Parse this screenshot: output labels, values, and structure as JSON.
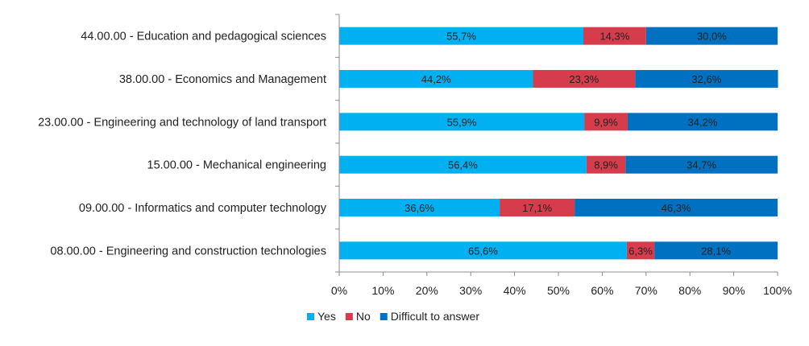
{
  "chart_data": {
    "type": "bar",
    "orientation": "horizontal",
    "stacked": true,
    "percent": true,
    "categories": [
      "44.00.00 - Education and pedagogical sciences",
      "38.00.00 - Economics and Management",
      "23.00.00 - Engineering and technology of land transport",
      "15.00.00 - Mechanical engineering",
      "09.00.00 - Informatics and computer technology",
      "08.00.00 - Engineering and construction technologies"
    ],
    "series": [
      {
        "name": "Yes",
        "color": "#00b0f0",
        "values": [
          55.7,
          44.2,
          55.9,
          56.4,
          36.6,
          65.6
        ],
        "labels": [
          "55,7%",
          "44,2%",
          "55,9%",
          "56,4%",
          "36,6%",
          "65,6%"
        ]
      },
      {
        "name": "No",
        "color": "#d63c4c",
        "values": [
          14.3,
          23.3,
          9.9,
          8.9,
          17.1,
          6.3
        ],
        "labels": [
          "14,3%",
          "23,3%",
          "9,9%",
          "8,9%",
          "17,1%",
          "6,3%"
        ]
      },
      {
        "name": "Difficult to answer",
        "color": "#0070c0",
        "values": [
          30.0,
          32.6,
          34.2,
          34.7,
          46.3,
          28.1
        ],
        "labels": [
          "30,0%",
          "32,6%",
          "34,2%",
          "34,7%",
          "46,3%",
          "28,1%"
        ]
      }
    ],
    "xlim": [
      0,
      100
    ],
    "xticks": [
      "0%",
      "10%",
      "20%",
      "30%",
      "40%",
      "50%",
      "60%",
      "70%",
      "80%",
      "90%",
      "100%"
    ],
    "title": "",
    "xlabel": "",
    "ylabel": "",
    "grid": false,
    "legend": "bottom"
  }
}
